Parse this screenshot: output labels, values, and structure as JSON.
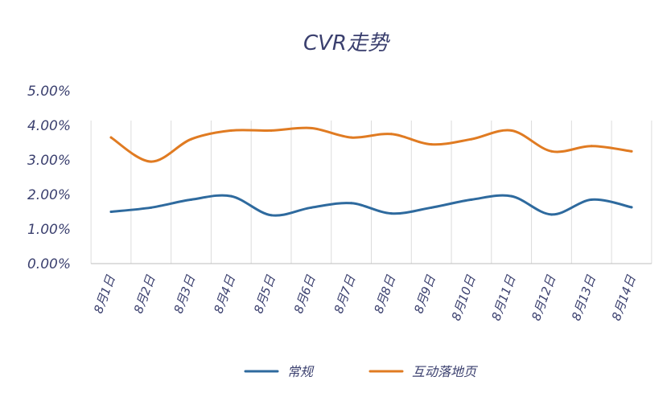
{
  "chart_data": {
    "type": "line",
    "title": "CVR走势",
    "categories": [
      "8月1日",
      "8月2日",
      "8月3日",
      "8月4日",
      "8月5日",
      "8月6日",
      "8月7日",
      "8月8日",
      "8月9日",
      "8月10日",
      "8月11日",
      "8月12日",
      "8月13日",
      "8月14日"
    ],
    "yticks": [
      "0.00%",
      "1.00%",
      "2.00%",
      "3.00%",
      "4.00%",
      "5.00%"
    ],
    "ylim": [
      0,
      5
    ],
    "y_unit": "%",
    "grid": "vertical",
    "legend_position": "bottom",
    "series": [
      {
        "name": "常规",
        "color": "#2e6a9e",
        "values": [
          1.5,
          1.62,
          1.85,
          1.95,
          1.4,
          1.62,
          1.75,
          1.45,
          1.62,
          1.85,
          1.95,
          1.42,
          1.85,
          1.63
        ]
      },
      {
        "name": "互动落地页",
        "color": "#e07b22",
        "values": [
          3.65,
          2.95,
          3.6,
          3.85,
          3.85,
          3.92,
          3.65,
          3.75,
          3.45,
          3.6,
          3.85,
          3.25,
          3.4,
          3.25
        ]
      }
    ]
  }
}
